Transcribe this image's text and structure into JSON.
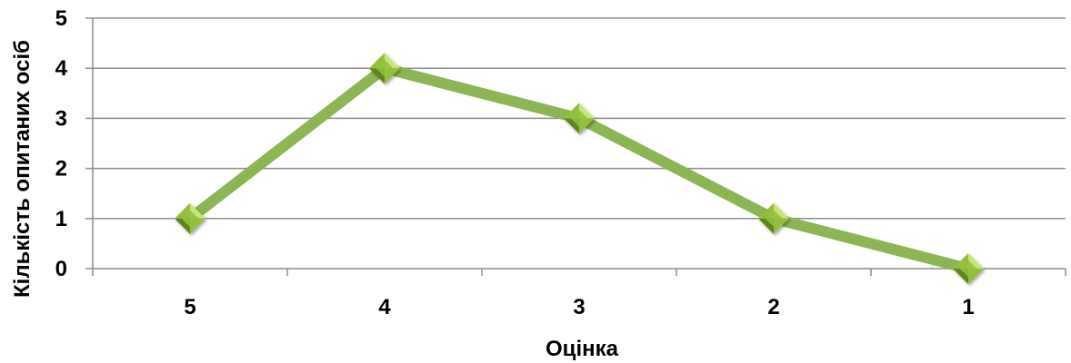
{
  "chart_data": {
    "type": "line",
    "title": "",
    "xlabel": "Оцінка",
    "ylabel": "Кількість опитаних осіб",
    "categories": [
      "5",
      "4",
      "3",
      "2",
      "1"
    ],
    "series": [
      {
        "values": [
          1,
          4,
          3,
          1,
          0
        ]
      }
    ],
    "ylim": [
      0,
      5
    ],
    "yticks": [
      "0",
      "1",
      "2",
      "3",
      "4",
      "5"
    ],
    "grid": true,
    "legend": "none",
    "colors": {
      "line": "#8CB553",
      "marker_light": "#C6E57A",
      "marker_mid": "#93BF3E",
      "marker_dark": "#5E8424",
      "grid": "#8C8C8C",
      "axis": "#8C8C8C"
    }
  }
}
